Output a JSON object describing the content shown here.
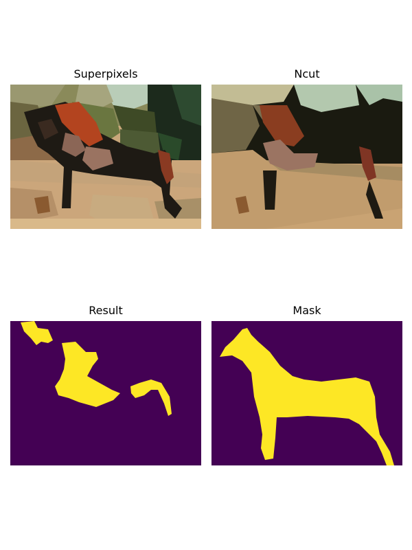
{
  "figure": {
    "panels": [
      {
        "title": "Superpixels"
      },
      {
        "title": "Ncut"
      },
      {
        "title": "Result"
      },
      {
        "title": "Mask"
      }
    ],
    "colors": {
      "mask_background": "#440154",
      "mask_foreground": "#fde725"
    }
  }
}
